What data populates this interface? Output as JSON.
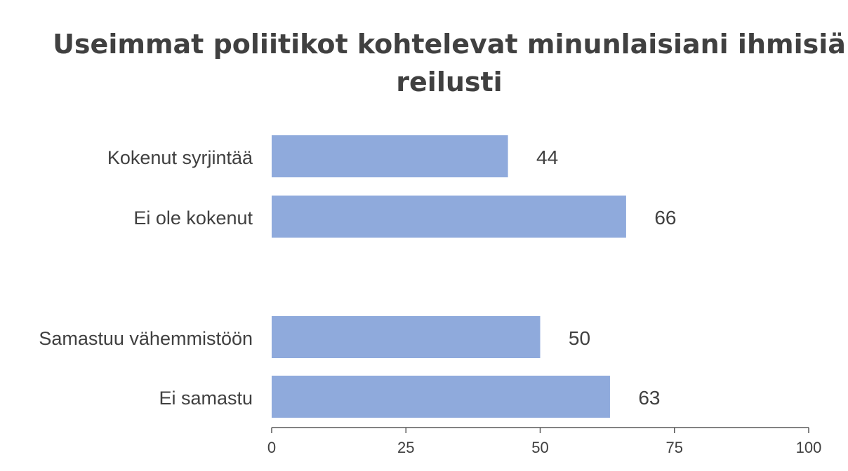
{
  "chart_data": {
    "type": "bar",
    "orientation": "horizontal",
    "title": "Useimmat poliitikot kohtelevat minunlaisiani ihmisiä reilusti",
    "categories": [
      "Kokenut syrjintää",
      "Ei ole kokenut",
      "Samastuu vähemmistöön",
      "Ei samastu"
    ],
    "groups": [
      [
        "Kokenut syrjintää",
        "Ei ole kokenut"
      ],
      [
        "Samastuu vähemmistöön",
        "Ei samastu"
      ]
    ],
    "values": [
      44,
      66,
      50,
      63
    ],
    "xlim": [
      0,
      100
    ],
    "xticks": [
      0,
      25,
      50,
      75,
      100
    ],
    "xlabel": "",
    "ylabel": "",
    "grid": false,
    "legend": "none",
    "data_labels": true,
    "colors": {
      "bar": "#8faadc",
      "text": "#404040",
      "axis": "#595959"
    }
  }
}
